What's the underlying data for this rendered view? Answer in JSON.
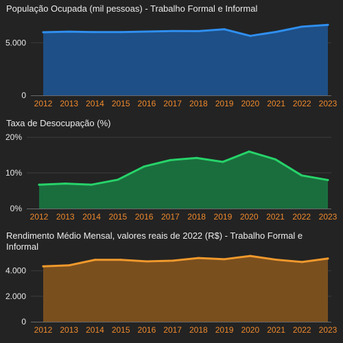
{
  "colors": {
    "background": "#232323",
    "grid": "#3d3d3d",
    "axis": "#6a6a6a",
    "tick_x": "#f08a2c",
    "tick_y": "#e8e8e8",
    "title": "#ececec"
  },
  "chart_data": [
    {
      "type": "area",
      "title": "População Ocupada (mil pessoas) - Trabalho Formal e Informal",
      "x": [
        "2012",
        "2013",
        "2014",
        "2015",
        "2016",
        "2017",
        "2018",
        "2019",
        "2020",
        "2021",
        "2022",
        "2023"
      ],
      "series": [
        {
          "values": [
            6000,
            6050,
            6010,
            6010,
            6060,
            6110,
            6100,
            6280,
            5650,
            6030,
            6530,
            6700
          ],
          "color": "#2f8ff0",
          "fill": "#1e4f86"
        }
      ],
      "ylim": [
        0,
        7300
      ],
      "yticks": [
        0,
        5000
      ],
      "ytick_labels": [
        "0",
        "5.000"
      ],
      "grid": true
    },
    {
      "type": "area",
      "title": "Taxa de Desocupação (%)",
      "x": [
        "2012",
        "2013",
        "2014",
        "2015",
        "2016",
        "2017",
        "2018",
        "2019",
        "2020",
        "2021",
        "2022",
        "2023"
      ],
      "series": [
        {
          "values": [
            6.7,
            7.0,
            6.7,
            8.1,
            11.8,
            13.6,
            14.2,
            13.1,
            16.0,
            13.8,
            9.3,
            8.0
          ],
          "color": "#27d36a",
          "fill": "#1a6e3d"
        }
      ],
      "ylim": [
        0,
        20.6
      ],
      "yticks": [
        0,
        10,
        20
      ],
      "ytick_labels": [
        "0%",
        "10%",
        "20%"
      ],
      "grid": true
    },
    {
      "type": "area",
      "title": "Rendimento Médio Mensal, valores reais de 2022 (R$) - Trabalho Formal e Informal",
      "x": [
        "2012",
        "2013",
        "2014",
        "2015",
        "2016",
        "2017",
        "2018",
        "2019",
        "2020",
        "2021",
        "2022",
        "2023"
      ],
      "series": [
        {
          "values": [
            4350,
            4430,
            4860,
            4860,
            4740,
            4790,
            5000,
            4910,
            5160,
            4870,
            4690,
            4960
          ],
          "color": "#f0992c",
          "fill": "#7a4f1e"
        }
      ],
      "ylim": [
        0,
        5600
      ],
      "yticks": [
        0,
        2000,
        4000
      ],
      "ytick_labels": [
        "0",
        "2.000",
        "4.000"
      ],
      "grid": true
    }
  ]
}
